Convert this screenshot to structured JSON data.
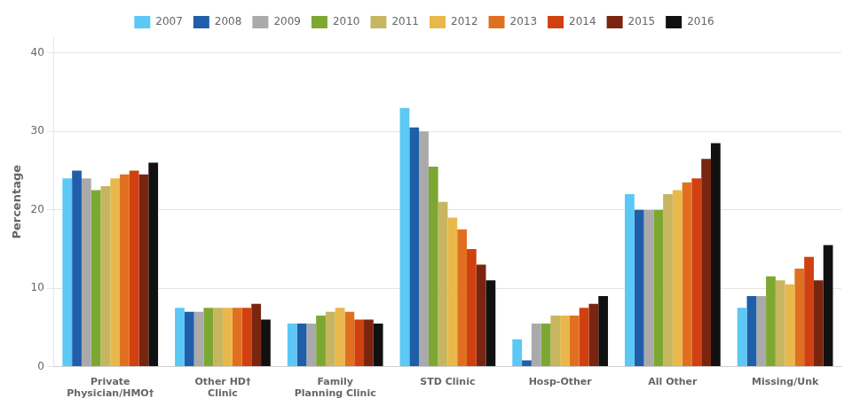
{
  "chart_data": {
    "type": "bar",
    "ylabel": "Percentage",
    "categories": [
      "Private\nPhysician/HMO†",
      "Other HD†\nClinic",
      "Family\nPlanning Clinic",
      "STD Clinic",
      "Hosp-Other",
      "All Other",
      "Missing/Unk"
    ],
    "series": [
      {
        "name": "2007",
        "color": "#5BC8F5",
        "values": [
          24.0,
          7.5,
          5.5,
          33.0,
          3.5,
          22.0,
          7.5
        ]
      },
      {
        "name": "2008",
        "color": "#1F5EA8",
        "values": [
          25.0,
          7.0,
          5.5,
          30.5,
          0.8,
          20.0,
          9.0
        ]
      },
      {
        "name": "2009",
        "color": "#AAAAAA",
        "values": [
          24.0,
          7.0,
          5.5,
          30.0,
          5.5,
          20.0,
          9.0
        ]
      },
      {
        "name": "2010",
        "color": "#7CA832",
        "values": [
          22.5,
          7.5,
          6.5,
          25.5,
          5.5,
          20.0,
          11.5
        ]
      },
      {
        "name": "2011",
        "color": "#C8B560",
        "values": [
          23.0,
          7.5,
          7.0,
          21.0,
          6.5,
          22.0,
          11.0
        ]
      },
      {
        "name": "2012",
        "color": "#E8B84B",
        "values": [
          24.0,
          7.5,
          7.5,
          19.0,
          6.5,
          22.5,
          10.5
        ]
      },
      {
        "name": "2013",
        "color": "#E07020",
        "values": [
          24.5,
          7.5,
          7.0,
          17.5,
          6.5,
          23.5,
          12.5
        ]
      },
      {
        "name": "2014",
        "color": "#D04010",
        "values": [
          25.0,
          7.5,
          6.0,
          15.0,
          7.5,
          24.0,
          14.0
        ]
      },
      {
        "name": "2015",
        "color": "#7A2510",
        "values": [
          24.5,
          8.0,
          6.0,
          13.0,
          8.0,
          26.5,
          11.0
        ]
      },
      {
        "name": "2016",
        "color": "#111111",
        "values": [
          26.0,
          6.0,
          5.5,
          11.0,
          9.0,
          28.5,
          15.5
        ]
      }
    ],
    "ylim": [
      0,
      42
    ],
    "yticks": [
      0,
      10,
      20,
      30,
      40
    ],
    "grid": true,
    "legend": "top"
  }
}
